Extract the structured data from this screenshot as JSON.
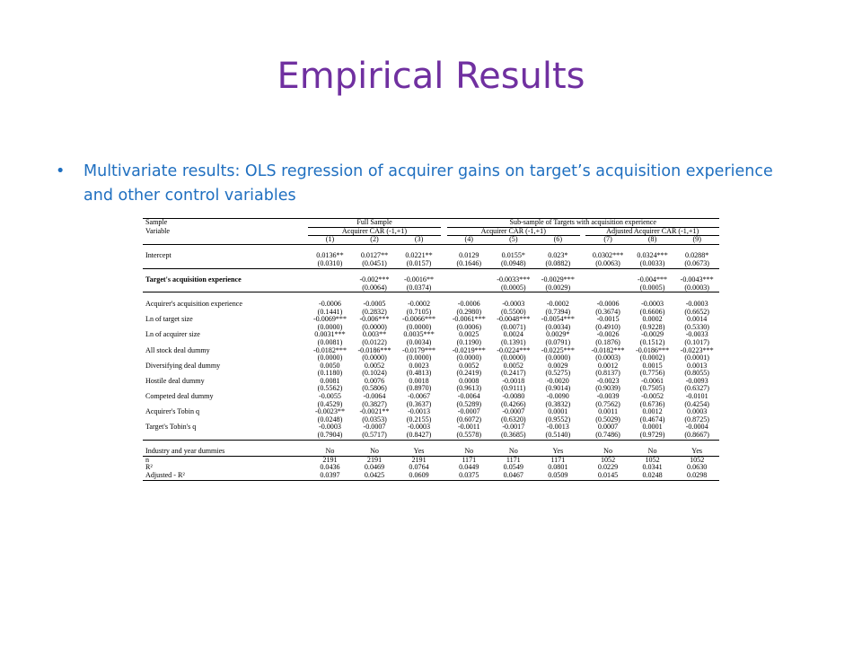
{
  "slide": {
    "title": "Empirical Results",
    "bullet": "Multivariate results: OLS regression of acquirer gains on target’s acquisition experience and other control variables"
  },
  "table": {
    "header": {
      "sample_label": "Sample",
      "variable_label": "Variable",
      "full_sample": "Full Sample",
      "sub_sample": "Sub-sample of Targets with acquisition experience",
      "car_full": "Acquirer CAR (-1,+1)",
      "car_sub": "Acquirer CAR (-1,+1)",
      "adj_car_sub": "Adjusted Acquirer CAR (-1,+1)",
      "models": [
        "(1)",
        "(2)",
        "(3)",
        "(4)",
        "(5)",
        "(6)",
        "(7)",
        "(8)",
        "(9)"
      ]
    },
    "groups": [
      {
        "rows": [
          {
            "label": "Intercept",
            "coef": [
              "0.0136**",
              "0.0127**",
              "0.0221**",
              "0.0129",
              "0.0155*",
              "0.023*",
              "0.0302***",
              "0.0324***",
              "0.0288*"
            ],
            "p": [
              "(0.0310)",
              "(0.0451)",
              "(0.0157)",
              "(0.1646)",
              "(0.0948)",
              "(0.0882)",
              "(0.0063)",
              "(0.0033)",
              "(0.0673)"
            ]
          }
        ]
      },
      {
        "rows": [
          {
            "label": "Target's acquisition experience",
            "bold": true,
            "coef": [
              "",
              "-0.002***",
              "-0.0016**",
              "",
              "-0.0033***",
              "-0.0029***",
              "",
              "-0.004***",
              "-0.0043***"
            ],
            "p": [
              "",
              "(0.0064)",
              "(0.0374)",
              "",
              "(0.0005)",
              "(0.0029)",
              "",
              "(0.0005)",
              "(0.0003)"
            ]
          }
        ]
      },
      {
        "rows": [
          {
            "label": "Acquirer's acquisition experience",
            "coef": [
              "-0.0006",
              "-0.0005",
              "-0.0002",
              "-0.0006",
              "-0.0003",
              "-0.0002",
              "-0.0006",
              "-0.0003",
              "-0.0003"
            ],
            "p": [
              "(0.1441)",
              "(0.2832)",
              "(0.7105)",
              "(0.2980)",
              "(0.5500)",
              "(0.7394)",
              "(0.3674)",
              "(0.6606)",
              "(0.6652)"
            ]
          },
          {
            "label": "Ln of target size",
            "coef": [
              "-0.0069***",
              "-0.006***",
              "-0.0066***",
              "-0.0061***",
              "-0.0048***",
              "-0.0054***",
              "-0.0015",
              "0.0002",
              "0.0014"
            ],
            "p": [
              "(0.0000)",
              "(0.0000)",
              "(0.0000)",
              "(0.0006)",
              "(0.0071)",
              "(0.0034)",
              "(0.4910)",
              "(0.9228)",
              "(0.5330)"
            ]
          },
          {
            "label": "Ln of acquirer size",
            "coef": [
              "0.0031***",
              "0.003**",
              "0.0035***",
              "0.0025",
              "0.0024",
              "0.0029*",
              "-0.0026",
              "-0.0029",
              "-0.0033"
            ],
            "p": [
              "(0.0081)",
              "(0.0122)",
              "(0.0034)",
              "(0.1190)",
              "(0.1391)",
              "(0.0791)",
              "(0.1876)",
              "(0.1512)",
              "(0.1017)"
            ]
          },
          {
            "label": "All stock deal dummy",
            "coef": [
              "-0.0182***",
              "-0.0186***",
              "-0.0179***",
              "-0.0219***",
              "-0.0224***",
              "-0.0225***",
              "-0.0182***",
              "-0.0186***",
              "-0.0223***"
            ],
            "p": [
              "(0.0000)",
              "(0.0000)",
              "(0.0000)",
              "(0.0000)",
              "(0.0000)",
              "(0.0000)",
              "(0.0003)",
              "(0.0002)",
              "(0.0001)"
            ]
          },
          {
            "label": "Diversifying deal dummy",
            "coef": [
              "0.0050",
              "0.0052",
              "0.0023",
              "0.0052",
              "0.0052",
              "0.0029",
              "0.0012",
              "0.0015",
              "0.0013"
            ],
            "p": [
              "(0.1180)",
              "(0.1024)",
              "(0.4813)",
              "(0.2419)",
              "(0.2417)",
              "(0.5275)",
              "(0.8137)",
              "(0.7756)",
              "(0.8055)"
            ]
          },
          {
            "label": "Hostile deal dummy",
            "coef": [
              "0.0081",
              "0.0076",
              "0.0018",
              "0.0008",
              "-0.0018",
              "-0.0020",
              "-0.0023",
              "-0.0061",
              "-0.0093"
            ],
            "p": [
              "(0.5562)",
              "(0.5806)",
              "(0.8970)",
              "(0.9613)",
              "(0.9111)",
              "(0.9014)",
              "(0.9039)",
              "(0.7505)",
              "(0.6327)"
            ]
          },
          {
            "label": "Competed deal dummy",
            "coef": [
              "-0.0055",
              "-0.0064",
              "-0.0067",
              "-0.0064",
              "-0.0080",
              "-0.0090",
              "-0.0039",
              "-0.0052",
              "-0.0101"
            ],
            "p": [
              "(0.4529)",
              "(0.3827)",
              "(0.3637)",
              "(0.5289)",
              "(0.4266)",
              "(0.3832)",
              "(0.7562)",
              "(0.6736)",
              "(0.4254)"
            ]
          },
          {
            "label": "Acquirer's Tobin q",
            "coef": [
              "-0.0023**",
              "-0.0021**",
              "-0.0013",
              "-0.0007",
              "-0.0007",
              "0.0001",
              "0.0011",
              "0.0012",
              "0.0003"
            ],
            "p": [
              "(0.0248)",
              "(0.0353)",
              "(0.2155)",
              "(0.6072)",
              "(0.6320)",
              "(0.9552)",
              "(0.5029)",
              "(0.4674)",
              "(0.8725)"
            ]
          },
          {
            "label": "Target's Tobin's q",
            "coef": [
              "-0.0003",
              "-0.0007",
              "-0.0003",
              "-0.0011",
              "-0.0017",
              "-0.0013",
              "0.0007",
              "0.0001",
              "-0.0004"
            ],
            "p": [
              "(0.7904)",
              "(0.5717)",
              "(0.8427)",
              "(0.5578)",
              "(0.3685)",
              "(0.5140)",
              "(0.7486)",
              "(0.9729)",
              "(0.8667)"
            ]
          }
        ]
      }
    ],
    "footer": [
      {
        "label": "Industry and year dummies",
        "values": [
          "No",
          "No",
          "Yes",
          "No",
          "No",
          "Yes",
          "No",
          "No",
          "Yes"
        ]
      },
      {
        "label": "n",
        "values": [
          "2191",
          "2191",
          "2191",
          "1171",
          "1171",
          "1171",
          "1052",
          "1052",
          "1052"
        ]
      },
      {
        "label": "R²",
        "values": [
          "0.0436",
          "0.0469",
          "0.0764",
          "0.0449",
          "0.0549",
          "0.0801",
          "0.0229",
          "0.0341",
          "0.0630"
        ]
      },
      {
        "label": "Adjusted - R²",
        "values": [
          "0.0397",
          "0.0425",
          "0.0609",
          "0.0375",
          "0.0467",
          "0.0509",
          "0.0145",
          "0.0248",
          "0.0298"
        ]
      }
    ]
  }
}
